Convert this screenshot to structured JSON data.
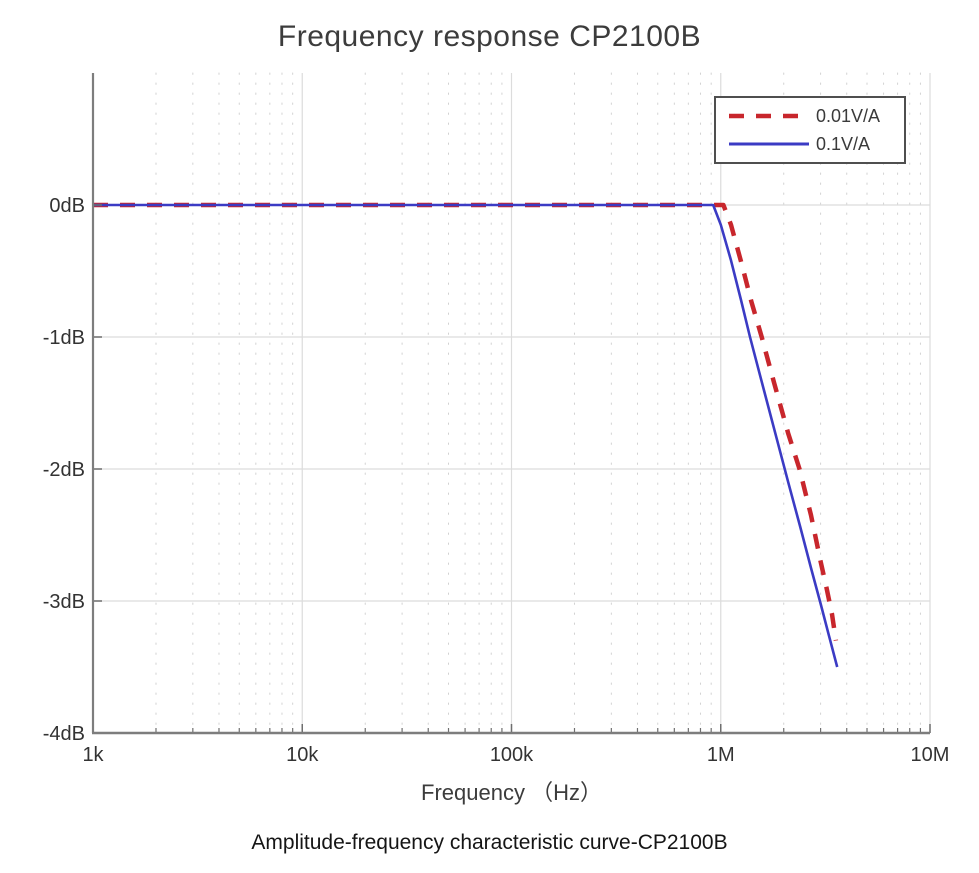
{
  "title": "Frequency response CP2100B",
  "caption": "Amplitude-frequency characteristic curve-CP2100B",
  "chart_data": {
    "type": "line",
    "title": "Frequency response CP2100B",
    "xlabel": "Frequency （Hz）",
    "ylabel": "",
    "x_scale": "log",
    "xlim": [
      1000,
      10000000
    ],
    "ylim": [
      -4,
      1
    ],
    "grid": {
      "major": true,
      "minor_x_dotted": true,
      "legend_position": "top-right"
    },
    "x_ticks": [
      {
        "value": 1000,
        "label": "1k"
      },
      {
        "value": 10000,
        "label": "10k"
      },
      {
        "value": 100000,
        "label": "100k"
      },
      {
        "value": 1000000,
        "label": "1M"
      },
      {
        "value": 10000000,
        "label": "10M"
      }
    ],
    "y_ticks": [
      {
        "value": 0,
        "label": "0dB"
      },
      {
        "value": -1,
        "label": "-1dB"
      },
      {
        "value": -2,
        "label": "-2dB"
      },
      {
        "value": -3,
        "label": "-3dB"
      },
      {
        "value": -4,
        "label": "-4dB"
      }
    ],
    "legend": {
      "entries": [
        {
          "label": "0.01V/A",
          "color": "#c8262c",
          "style": "dashed"
        },
        {
          "label": "0.1V/A",
          "color": "#3b3bc4",
          "style": "solid"
        }
      ]
    },
    "colors": {
      "axis": "#7d7d7d",
      "tick": "#6e6e6e",
      "major_grid": "#dcdcdc",
      "minor_grid": "#d2d2d2",
      "tick_label": "#333333",
      "axis_label": "#3c3c3c"
    },
    "series": [
      {
        "name": "0.01V/A",
        "color": "#c8262c",
        "style": "dashed",
        "line_width": 4.5,
        "points": [
          [
            1000,
            0
          ],
          [
            2000,
            0
          ],
          [
            5000,
            0
          ],
          [
            10000,
            0
          ],
          [
            30000,
            0
          ],
          [
            100000,
            0
          ],
          [
            300000,
            0
          ],
          [
            600000,
            0
          ],
          [
            900000,
            0
          ],
          [
            1030000,
            0
          ],
          [
            1120000,
            -0.15
          ],
          [
            1260000,
            -0.45
          ],
          [
            1400000,
            -0.73
          ],
          [
            1570000,
            -1.0
          ],
          [
            1800000,
            -1.35
          ],
          [
            2100000,
            -1.73
          ],
          [
            2380000,
            -2.0
          ],
          [
            2700000,
            -2.35
          ],
          [
            3000000,
            -2.7
          ],
          [
            3200000,
            -2.9
          ],
          [
            3400000,
            -3.1
          ],
          [
            3550000,
            -3.3
          ]
        ]
      },
      {
        "name": "0.1V/A",
        "color": "#3b3bc4",
        "style": "solid",
        "line_width": 2.6,
        "points": [
          [
            1000,
            0
          ],
          [
            2000,
            0
          ],
          [
            5000,
            0
          ],
          [
            10000,
            0
          ],
          [
            30000,
            0
          ],
          [
            100000,
            0
          ],
          [
            300000,
            0
          ],
          [
            600000,
            0
          ],
          [
            900000,
            0
          ],
          [
            920000,
            0
          ],
          [
            1000000,
            -0.15
          ],
          [
            1120000,
            -0.42
          ],
          [
            1250000,
            -0.72
          ],
          [
            1380000,
            -1.0
          ],
          [
            1600000,
            -1.39
          ],
          [
            1850000,
            -1.77
          ],
          [
            2100000,
            -2.1
          ],
          [
            2400000,
            -2.44
          ],
          [
            2700000,
            -2.75
          ],
          [
            3000000,
            -3.02
          ],
          [
            3300000,
            -3.27
          ],
          [
            3600000,
            -3.5
          ]
        ]
      }
    ]
  }
}
